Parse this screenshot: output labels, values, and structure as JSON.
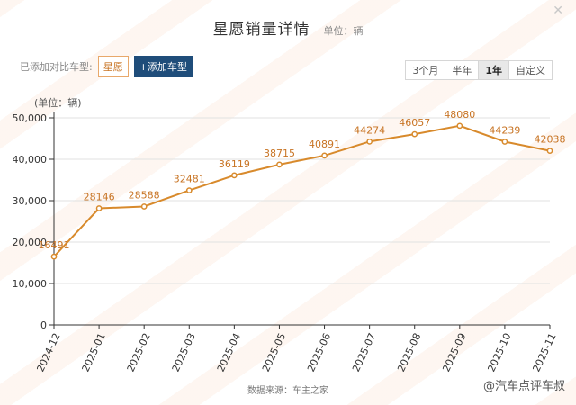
{
  "header": {
    "title": "星愿销量详情",
    "unit_note": "单位：辆"
  },
  "compare": {
    "label": "已添加对比车型:",
    "model": "星愿",
    "add_label": "+添加车型"
  },
  "ranges": [
    "3个月",
    "半年",
    "1年",
    "自定义"
  ],
  "active_range": "1年",
  "footer": {
    "source": "数据来源：车主之家",
    "brand": "@汽车点评车叔"
  },
  "colors": {
    "line": "#d88a2c",
    "label": "#c87424",
    "grid": "#e1e1e1"
  },
  "chart_data": {
    "type": "line",
    "unit_label": "(单位：辆)",
    "categories": [
      "2024-12",
      "2025-01",
      "2025-02",
      "2025-03",
      "2025-04",
      "2025-05",
      "2025-06",
      "2025-07",
      "2025-08",
      "2025-09",
      "2025-10",
      "2025-11"
    ],
    "values": [
      16491,
      28146,
      28588,
      32481,
      36119,
      38715,
      40891,
      44274,
      46057,
      48080,
      44239,
      42038
    ],
    "yticks": [
      "0",
      "10,000",
      "20,000",
      "30,000",
      "40,000",
      "50,000"
    ],
    "ylim": [
      0,
      50000
    ],
    "grid": true
  }
}
